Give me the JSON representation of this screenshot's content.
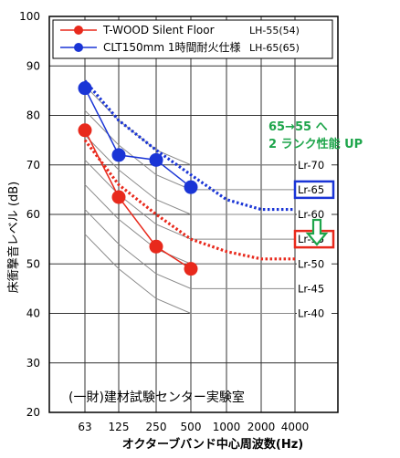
{
  "chart_data": {
    "type": "line",
    "title": "",
    "xlabel": "オクターブバンド中心周波数(Hz)",
    "ylabel": "床衝撃音レベル (dB)",
    "categories": [
      "63",
      "125",
      "250",
      "500",
      "1000",
      "2000",
      "4000"
    ],
    "ylim": [
      20,
      100
    ],
    "yticks": [
      "20",
      "30",
      "40",
      "50",
      "60",
      "70",
      "80",
      "90",
      "100"
    ],
    "grid": true,
    "legend_position": "top-left",
    "series": [
      {
        "name": "T-WOOD Silent Floor",
        "rating": "LH-55(54)",
        "color": "#e8291c",
        "values": [
          77,
          63.5,
          53.5,
          49,
          null,
          null,
          null
        ]
      },
      {
        "name": "CLT150mm 1時間耐火仕様",
        "rating": "LH-65(65)",
        "color": "#1a35d6",
        "values": [
          85.5,
          72,
          71,
          65.5,
          null,
          null,
          null
        ]
      }
    ],
    "rating_curves": [
      {
        "label": "Lr-70",
        "values": [
          86,
          79,
          73,
          70,
          70,
          70,
          70
        ]
      },
      {
        "label": "Lr-65",
        "values": [
          81,
          74,
          68,
          65,
          65,
          65,
          65
        ]
      },
      {
        "label": "Lr-60",
        "values": [
          76,
          69,
          63,
          60,
          60,
          60,
          60
        ]
      },
      {
        "label": "Lr-55",
        "values": [
          71,
          64,
          58,
          55,
          55,
          55,
          55
        ]
      },
      {
        "label": "Lr-50",
        "values": [
          66,
          59,
          53,
          50,
          50,
          50,
          50
        ]
      },
      {
        "label": "Lr-45",
        "values": [
          61,
          54,
          48,
          45,
          45,
          45,
          45
        ]
      },
      {
        "label": "Lr-40",
        "values": [
          56,
          49,
          43,
          40,
          40,
          40,
          40
        ]
      }
    ],
    "highlighted_curves": [
      {
        "color": "#1a35d6",
        "values": [
          87,
          79,
          73,
          68,
          63,
          61,
          61
        ]
      },
      {
        "color": "#e8291c",
        "values": [
          75,
          66,
          60,
          55,
          52.5,
          51,
          51
        ]
      }
    ],
    "annotation": {
      "lines": [
        "65→55 へ",
        "2 ランク性能 UP"
      ],
      "color": "#1ea54b"
    },
    "boxed_labels": [
      {
        "label": "Lr-65",
        "color": "#1a35d6"
      },
      {
        "label": "Lr-55",
        "color": "#e8291c"
      }
    ],
    "source_note": "(一財)建材試験センター実験室"
  }
}
